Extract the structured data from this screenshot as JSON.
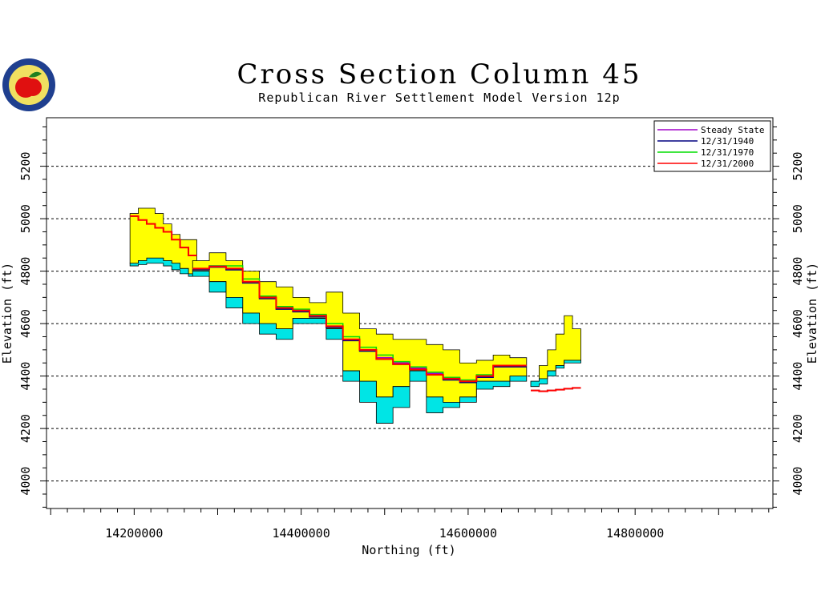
{
  "chart_data": {
    "type": "area",
    "title": "Cross Section Column 45",
    "subtitle": "Republican River Settlement Model Version 12p",
    "xlabel": "Northing (ft)",
    "ylabel": "Elevation (ft)",
    "xlim": [
      14095000,
      14965000
    ],
    "ylim": [
      3895000,
      5385000
    ],
    "x_ticks": [
      14200000,
      14400000,
      14600000,
      14800000
    ],
    "x_tick_labels": [
      "14200000",
      "14400000",
      "14600000",
      "14800000"
    ],
    "y_ticks": [
      4000,
      4200,
      4400,
      4600,
      4800,
      5000,
      5200
    ],
    "y_tick_labels": [
      "4000",
      "4200",
      "4400",
      "4600",
      "4800",
      "5000",
      "5200"
    ],
    "grid": "horizontal-dashed",
    "legend_position": "top-right",
    "colors": {
      "land_surface_fill": "#ffff00",
      "aquifer_base_fill": "#00e5e5",
      "steady_state": "#a000c8",
      "y1940": "#000080",
      "y1970": "#00dd00",
      "y2000": "#ff0000"
    },
    "regions": [
      {
        "x": [
          14200000,
          14210000,
          14220000,
          14230000,
          14240000,
          14250000,
          14260000,
          14270000
        ],
        "surface": [
          5020,
          5040,
          5040,
          5020,
          4980,
          4940,
          4920,
          4920
        ],
        "aquifer_top": [
          4830,
          4840,
          4850,
          4850,
          4840,
          4830,
          4810,
          4790
        ],
        "aquifer_bottom": [
          4820,
          4825,
          4830,
          4830,
          4820,
          4805,
          4790,
          4780
        ],
        "water_levels": {
          "steady_state": [
            5010,
            4995,
            4980,
            4965,
            4950,
            4920,
            4890,
            4860
          ],
          "y1940": [
            5010,
            4995,
            4980,
            4965,
            4950,
            4920,
            4890,
            4860
          ],
          "y1970": [
            5010,
            4995,
            4980,
            4965,
            4950,
            4920,
            4890,
            4860
          ],
          "y2000": [
            5010,
            4995,
            4980,
            4965,
            4950,
            4920,
            4890,
            4860
          ]
        }
      },
      {
        "x": [
          14280000,
          14300000,
          14320000,
          14340000,
          14360000,
          14380000,
          14400000,
          14420000,
          14440000,
          14460000,
          14480000,
          14500000,
          14520000,
          14540000,
          14560000,
          14580000,
          14600000,
          14620000,
          14640000,
          14660000
        ],
        "surface": [
          4840,
          4870,
          4840,
          4800,
          4760,
          4740,
          4700,
          4680,
          4720,
          4640,
          4580,
          4560,
          4540,
          4540,
          4520,
          4500,
          4450,
          4460,
          4480,
          4470
        ],
        "aquifer_top": [
          4800,
          4760,
          4700,
          4640,
          4600,
          4580,
          4620,
          4620,
          4580,
          4420,
          4380,
          4320,
          4360,
          4420,
          4320,
          4300,
          4320,
          4380,
          4380,
          4400
        ],
        "aquifer_bottom": [
          4780,
          4720,
          4660,
          4600,
          4560,
          4540,
          4600,
          4600,
          4540,
          4380,
          4300,
          4220,
          4280,
          4380,
          4260,
          4280,
          4300,
          4350,
          4360,
          4380
        ],
        "water_levels": {
          "steady_state": [
            4810,
            4820,
            4810,
            4760,
            4700,
            4660,
            4650,
            4630,
            4590,
            4540,
            4500,
            4470,
            4450,
            4430,
            4410,
            4390,
            4380,
            4400,
            4440,
            4440
          ],
          "y1940": [
            4805,
            4815,
            4805,
            4755,
            4695,
            4655,
            4645,
            4625,
            4585,
            4535,
            4495,
            4465,
            4445,
            4425,
            4405,
            4385,
            4375,
            4395,
            4435,
            4435
          ],
          "y1970": [
            4810,
            4820,
            4820,
            4770,
            4705,
            4665,
            4655,
            4635,
            4600,
            4550,
            4510,
            4480,
            4455,
            4435,
            4415,
            4395,
            4385,
            4405,
            4440,
            4440
          ],
          "y2000": [
            4810,
            4818,
            4810,
            4760,
            4700,
            4660,
            4650,
            4630,
            4590,
            4540,
            4500,
            4465,
            4445,
            4425,
            4405,
            4390,
            4380,
            4400,
            4440,
            4440
          ]
        }
      },
      {
        "x": [
          14680000,
          14690000,
          14700000,
          14710000,
          14720000,
          14730000
        ],
        "surface": [
          4380,
          4440,
          4500,
          4560,
          4630,
          4580
        ],
        "aquifer_top": [
          4380,
          4390,
          4420,
          4440,
          4460,
          4460
        ],
        "aquifer_bottom": [
          4360,
          4370,
          4400,
          4430,
          4450,
          4450
        ],
        "water_levels": {
          "steady_state": [
            4345,
            4342,
            4345,
            4348,
            4352,
            4355
          ],
          "y1940": [
            4345,
            4342,
            4345,
            4348,
            4352,
            4355
          ],
          "y1970": [
            4345,
            4342,
            4345,
            4348,
            4352,
            4355
          ],
          "y2000": [
            4345,
            4342,
            4345,
            4348,
            4352,
            4355
          ]
        }
      }
    ],
    "legend": [
      {
        "key": "steady_state",
        "label": "Steady State"
      },
      {
        "key": "y1940",
        "label": "12/31/1940"
      },
      {
        "key": "y1970",
        "label": "12/31/1970"
      },
      {
        "key": "y2000",
        "label": "12/31/2000"
      }
    ]
  },
  "logo": {
    "colors": {
      "ring": "#1f3f8f",
      "inner": "#f0e060",
      "apple": "#e01010",
      "leaf": "#208020"
    }
  }
}
